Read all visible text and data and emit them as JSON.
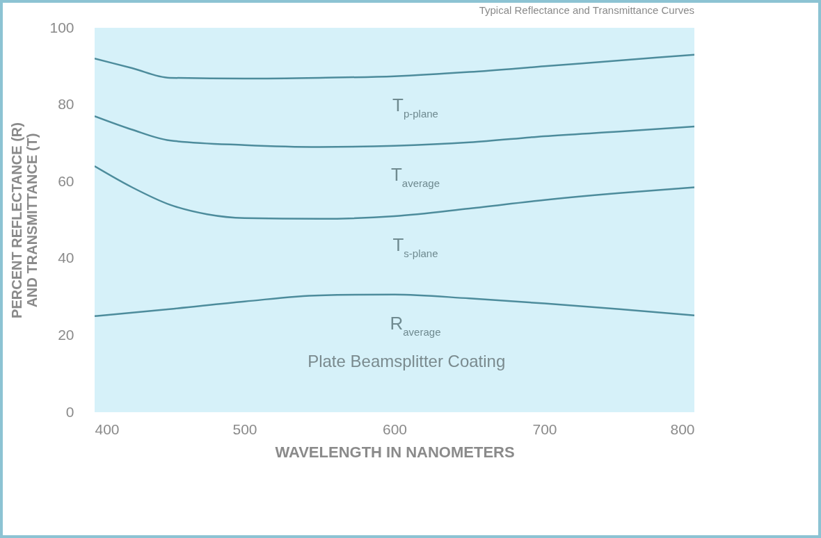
{
  "chart_data": {
    "type": "line",
    "title": "Typical Reflectance and Transmittance Curves",
    "xlabel": "WAVELENGTH IN NANOMETERS",
    "ylabel": "PERCENT REFLECTANCE (R)\nAND TRANSMITTANCE (T)",
    "xlim": [
      400,
      800
    ],
    "xticks": [
      400,
      500,
      600,
      700,
      800
    ],
    "ylim": [
      0,
      100
    ],
    "yticks": [
      0,
      20,
      40,
      60,
      80,
      100
    ],
    "series": [
      {
        "name": "T$_{p-plane}$",
        "color": "#4d8c9c",
        "x": [
          400,
          425,
          450,
          500,
          550,
          600,
          650,
          700,
          750,
          800
        ],
        "values": [
          92,
          89.5,
          87,
          86.8,
          87,
          87.4,
          88.5,
          90,
          91.5,
          93
        ]
      },
      {
        "name": "T$_{average}$",
        "color": "#4d8c9c",
        "x": [
          400,
          425,
          450,
          500,
          550,
          600,
          650,
          700,
          750,
          800
        ],
        "values": [
          77,
          73.5,
          70.7,
          69.5,
          69,
          69.3,
          70.2,
          71.8,
          73,
          74.3
        ]
      },
      {
        "name": "T$_{s-plane}$",
        "color": "#4d8c9c",
        "x": [
          400,
          425,
          450,
          475,
          500,
          550,
          600,
          650,
          700,
          750,
          800
        ],
        "values": [
          64,
          58.5,
          54,
          51.5,
          50.5,
          50.3,
          51,
          53,
          55.2,
          57,
          58.5
        ]
      },
      {
        "name": "R$_{average}$",
        "color": "#4d8c9c",
        "x": [
          400,
          450,
          500,
          550,
          600,
          650,
          700,
          750,
          800
        ],
        "values": [
          25,
          26.8,
          28.8,
          30.4,
          30.6,
          29.6,
          28.3,
          26.8,
          25.2
        ]
      }
    ],
    "annotations": [
      "Plate Beamsplitter Coating"
    ]
  }
}
